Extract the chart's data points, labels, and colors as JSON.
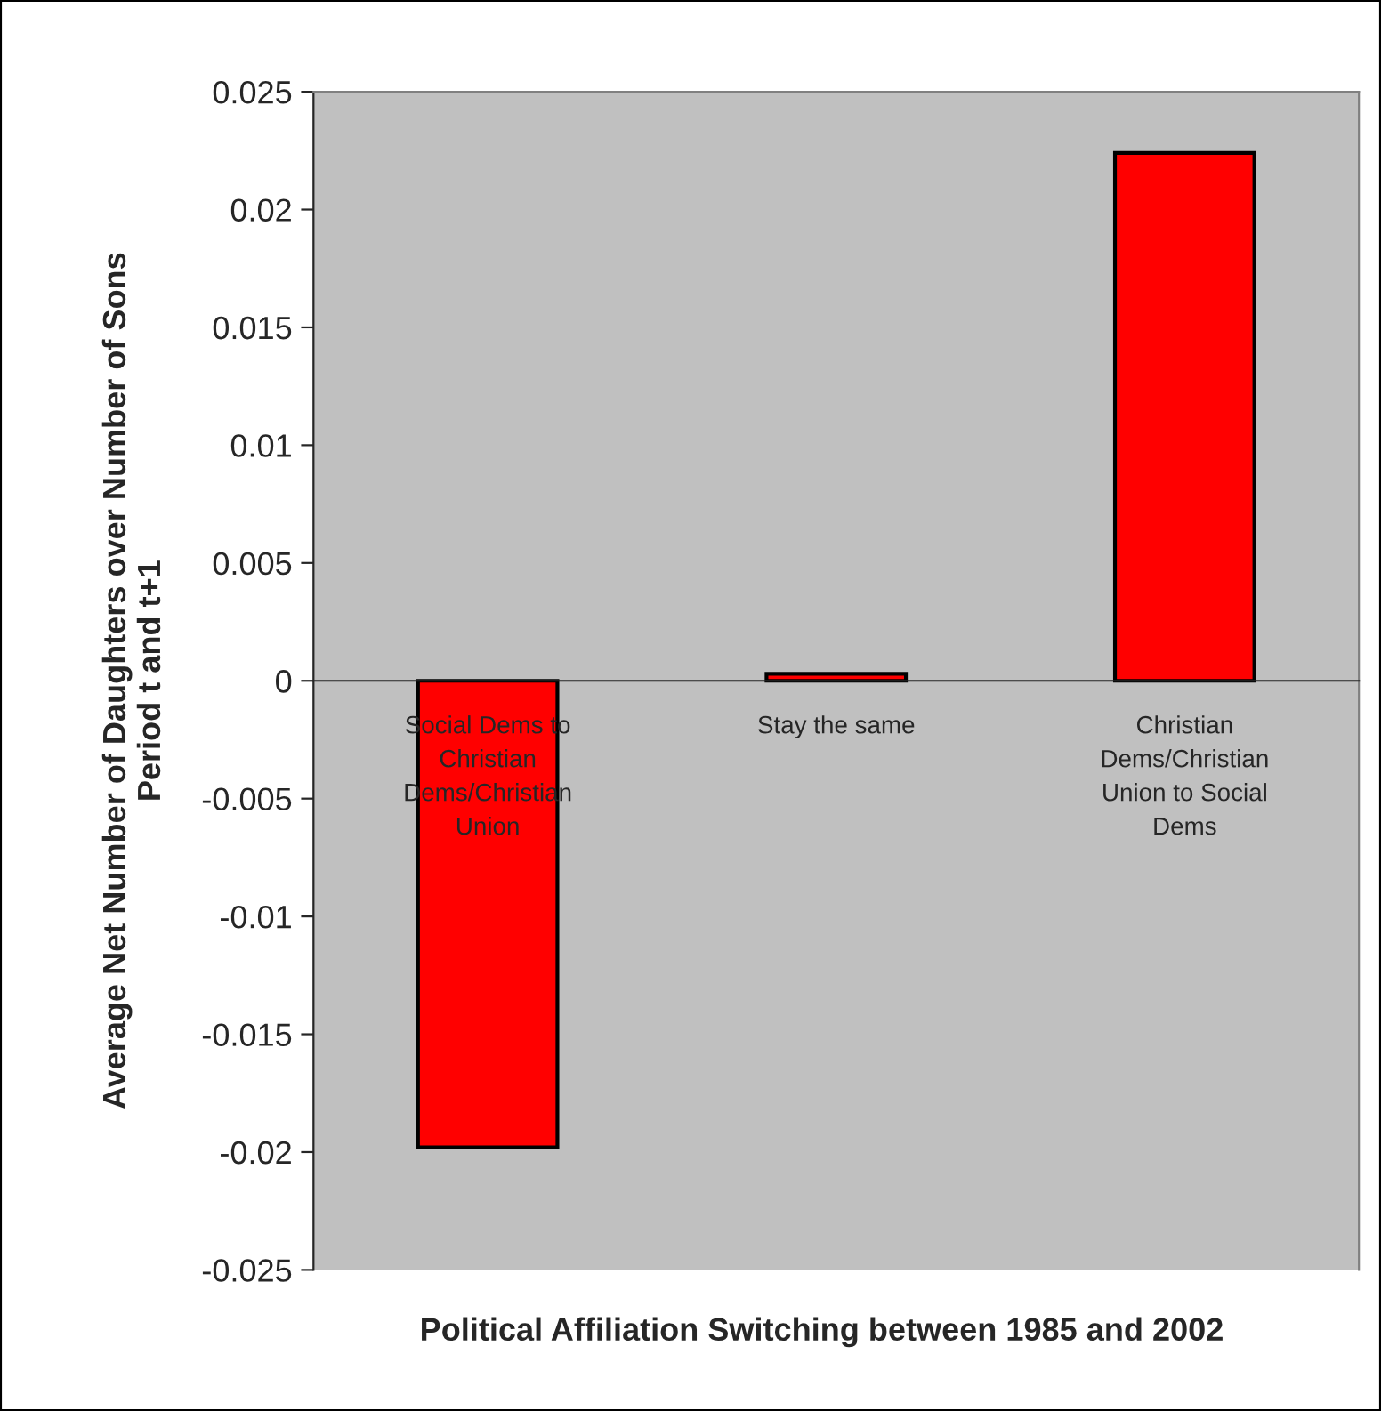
{
  "chart_data": {
    "type": "bar",
    "xlabel": "Political Affiliation Switching between 1985 and 2002",
    "ylabel": "Average Net Number of Daughters over Number of Sons\nPeriod t and t+1",
    "categories": [
      "Social Dems to\nChristian\nDems/Christian\nUnion",
      "Stay the same",
      "Christian\nDems/Christian\nUnion to Social\nDems"
    ],
    "values": [
      -0.0198,
      0.0003,
      0.0224
    ],
    "color": "#ff0000",
    "ylim": [
      -0.025,
      0.025
    ],
    "yticks": [
      -0.025,
      -0.02,
      -0.015,
      -0.01,
      -0.005,
      0,
      0.005,
      0.01,
      0.015,
      0.02,
      0.025
    ],
    "grid": false,
    "legend": false
  }
}
